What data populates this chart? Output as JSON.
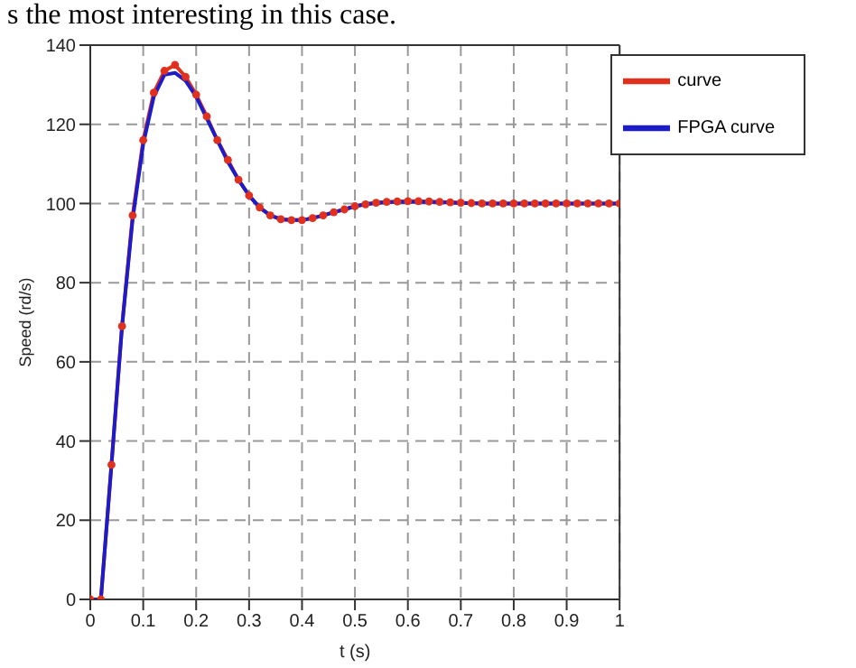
{
  "chart_data": {
    "type": "line",
    "annotations": [
      "s the most interesting in this case."
    ],
    "xlabel": "t (s)",
    "ylabel": "Speed (rd/s)",
    "x": [
      0,
      0.02,
      0.04,
      0.06,
      0.08,
      0.1,
      0.12,
      0.14,
      0.16,
      0.18,
      0.2,
      0.22,
      0.24,
      0.26,
      0.28,
      0.3,
      0.32,
      0.34,
      0.36,
      0.38,
      0.4,
      0.42,
      0.44,
      0.46,
      0.48,
      0.5,
      0.52,
      0.54,
      0.56,
      0.58,
      0.6,
      0.62,
      0.64,
      0.66,
      0.68,
      0.7,
      0.72,
      0.74,
      0.76,
      0.78,
      0.8,
      0.82,
      0.84,
      0.86,
      0.88,
      0.9,
      0.92,
      0.94,
      0.96,
      0.98,
      1
    ],
    "series": [
      {
        "name": "curve",
        "color": "#e0301e",
        "marker": "circle",
        "values": [
          0,
          0,
          34,
          69,
          97,
          116,
          128,
          133.5,
          135,
          132,
          127.5,
          122,
          116,
          111,
          106,
          102,
          99,
          97,
          96,
          95.8,
          95.8,
          96.3,
          97,
          97.8,
          98.5,
          99.3,
          99.8,
          100.2,
          100.4,
          100.5,
          100.6,
          100.6,
          100.5,
          100.4,
          100.3,
          100.2,
          100.1,
          100,
          100,
          100,
          100,
          100,
          100,
          100,
          100,
          100,
          100,
          100,
          100,
          100,
          100
        ]
      },
      {
        "name": "FPGA curve",
        "color": "#1c1cc8",
        "marker": "none",
        "values": [
          0,
          0,
          34,
          69,
          96,
          115,
          127,
          132.5,
          133,
          131,
          127,
          121.5,
          116,
          110.5,
          106,
          102,
          99,
          97,
          96,
          95.8,
          95.8,
          96.3,
          97,
          97.8,
          98.5,
          99.3,
          99.8,
          100.1,
          100.3,
          100.4,
          100.4,
          100.4,
          100.4,
          100.3,
          100.2,
          100.1,
          100.1,
          100,
          100,
          100,
          100,
          100,
          100,
          100,
          100,
          100,
          100,
          100,
          100,
          100,
          100
        ]
      }
    ],
    "xlim": [
      0,
      1
    ],
    "xticks": [
      0,
      0.1,
      0.2,
      0.3,
      0.4,
      0.5,
      0.6,
      0.7,
      0.8,
      0.9,
      1
    ],
    "ylim": [
      0,
      140
    ],
    "yticks": [
      0,
      20,
      40,
      60,
      80,
      100,
      120,
      140
    ],
    "grid": true,
    "legend": "top right",
    "line_style": "solid"
  }
}
